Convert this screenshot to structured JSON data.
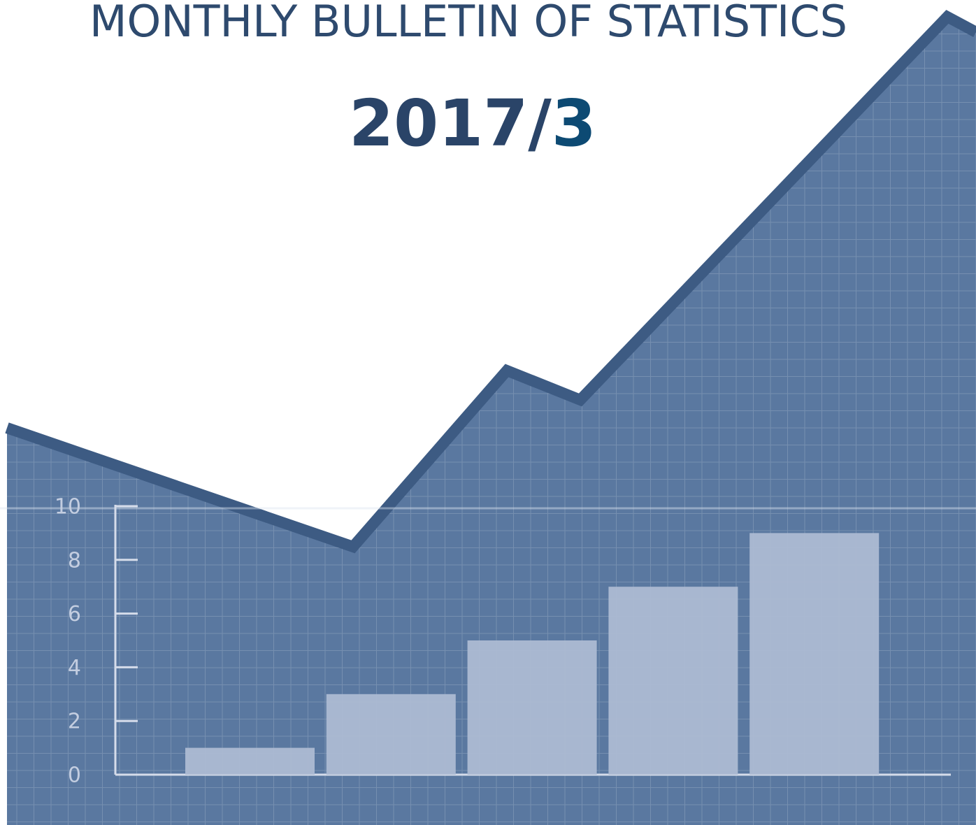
{
  "title": "MONTHLY BULLETIN OF STATISTICS",
  "issue": {
    "year": "2017/",
    "month": "3"
  },
  "chart_data": {
    "type": "bar",
    "values": [
      1,
      3,
      5,
      7,
      9
    ],
    "color": "#adbad3",
    "ylim": [
      0,
      10
    ],
    "yticks": [
      0,
      2,
      4,
      6,
      8,
      10
    ]
  }
}
